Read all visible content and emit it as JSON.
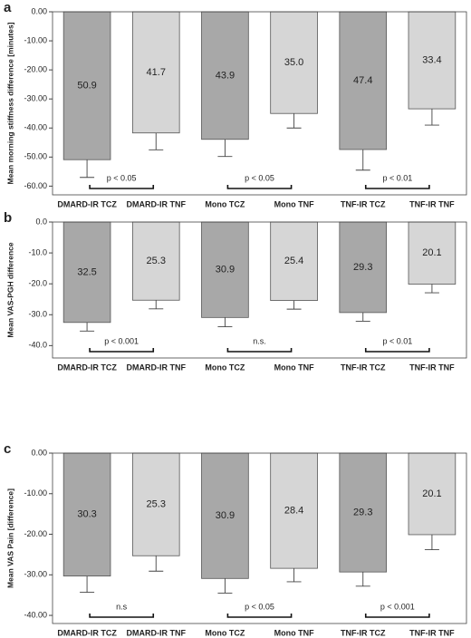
{
  "chart_data": [
    {
      "type": "bar",
      "panel": "a",
      "y_label": "Mean morning stiffness difference [minutes]",
      "categories": [
        "DMARD-IR TCZ",
        "DMARD-IR TNF",
        "Mono TCZ",
        "Mono TNF",
        "TNF-IR TCZ",
        "TNF-IR TNF"
      ],
      "values": [
        -50.9,
        -41.7,
        -43.9,
        -35.0,
        -47.4,
        -33.4
      ],
      "value_labels": [
        "50.9",
        "41.7",
        "43.9",
        "35.0",
        "47.4",
        "33.4"
      ],
      "errors": [
        6.1,
        5.8,
        5.9,
        5,
        7.1,
        5.6
      ],
      "colors": [
        "#a8a8a8",
        "#d6d6d6",
        "#a8a8a8",
        "#d6d6d6",
        "#a8a8a8",
        "#d6d6d6"
      ],
      "annotations": [
        "p < 0.05",
        "p < 0.05",
        "p < 0.01"
      ],
      "ylim": [
        -63,
        0
      ],
      "yticks": [
        {
          "value": 0,
          "label": "0.00"
        },
        {
          "value": -10,
          "label": "-10.00"
        },
        {
          "value": -20,
          "label": "-20.00"
        },
        {
          "value": -30,
          "label": "-30.00"
        },
        {
          "value": -40,
          "label": "-40.00"
        },
        {
          "value": -50,
          "label": "-50.00"
        },
        {
          "value": -60,
          "label": "-60.00"
        }
      ]
    },
    {
      "type": "bar",
      "panel": "b",
      "y_label": "Mean VAS-PGH difference",
      "categories": [
        "DMARD-IR TCZ",
        "DMARD-IR TNF",
        "Mono TCZ",
        "Mono TNF",
        "TNF-IR TCZ",
        "TNF-IR TNF"
      ],
      "values": [
        -32.5,
        -25.3,
        -30.9,
        -25.4,
        -29.3,
        -20.1
      ],
      "value_labels": [
        "32.5",
        "25.3",
        "30.9",
        "25.4",
        "29.3",
        "20.1"
      ],
      "errors": [
        2.8,
        2.8,
        3.0,
        2.8,
        2.8,
        2.8
      ],
      "colors": [
        "#a8a8a8",
        "#d6d6d6",
        "#a8a8a8",
        "#d6d6d6",
        "#a8a8a8",
        "#d6d6d6"
      ],
      "annotations": [
        "p < 0.001",
        "n.s.",
        "p < 0.01"
      ],
      "ylim": [
        -44,
        0
      ],
      "yticks": [
        {
          "value": 0,
          "label": "0.0"
        },
        {
          "value": -10,
          "label": "-10.0"
        },
        {
          "value": -20,
          "label": "-20.0"
        },
        {
          "value": -30,
          "label": "-30.0"
        },
        {
          "value": -40,
          "label": "-40.0"
        }
      ]
    },
    {
      "type": "bar",
      "panel": "c",
      "y_label": "Mean VAS Pain [difference]",
      "categories": [
        "DMARD-IR TCZ",
        "DMARD-IR TNF",
        "Mono TCZ",
        "Mono TNF",
        "TNF-IR TCZ",
        "TNF-IR TNF"
      ],
      "values": [
        -30.3,
        -25.3,
        -30.9,
        -28.4,
        -29.3,
        -20.1
      ],
      "value_labels": [
        "30.3",
        "25.3",
        "30.9",
        "28.4",
        "29.3",
        "20.1"
      ],
      "errors": [
        4,
        3.8,
        3.6,
        3.3,
        3.5,
        3.7
      ],
      "colors": [
        "#a8a8a8",
        "#d6d6d6",
        "#a8a8a8",
        "#d6d6d6",
        "#a8a8a8",
        "#d6d6d6"
      ],
      "annotations": [
        "n.s",
        "p < 0.05",
        "p < 0.001"
      ],
      "ylim": [
        -42,
        0
      ],
      "yticks": [
        {
          "value": 0,
          "label": "0.00"
        },
        {
          "value": -10,
          "label": "-10.00"
        },
        {
          "value": -20,
          "label": "-20.00"
        },
        {
          "value": -30,
          "label": "-30.00"
        },
        {
          "value": -40,
          "label": "-40.00"
        }
      ]
    }
  ]
}
